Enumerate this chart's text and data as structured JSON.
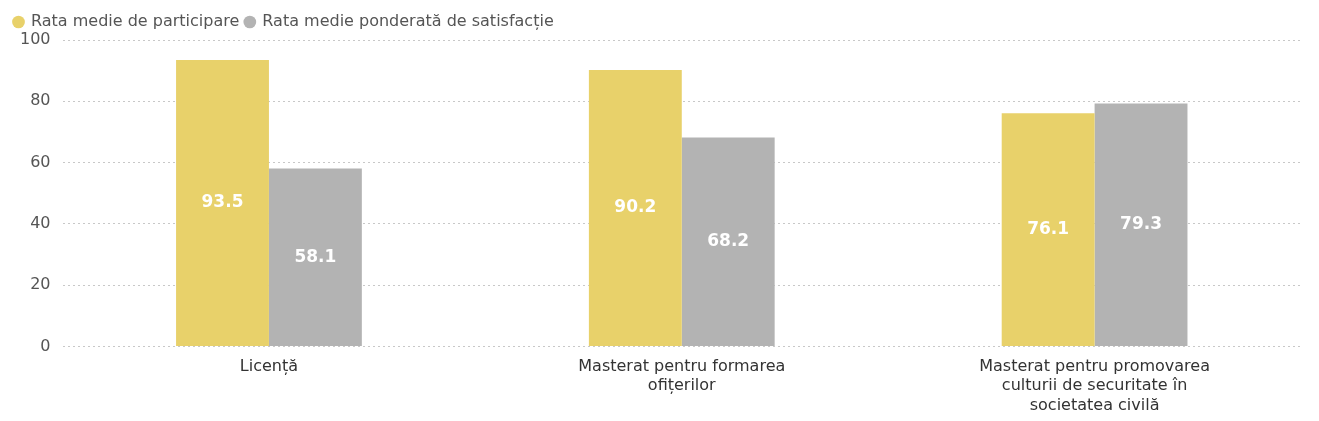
{
  "chart_data": {
    "type": "bar",
    "categories": [
      "Licență",
      "Masterat pentru formarea ofițerilor",
      "Masterat pentru promovarea culturii de securitate în societatea civilă"
    ],
    "series": [
      {
        "name": "Rata medie de participare",
        "color": "#e8d16a",
        "values": [
          93.5,
          90.2,
          76.1
        ]
      },
      {
        "name": "Rata medie ponderată de satisfacție",
        "color": "#b3b3b3",
        "values": [
          58.1,
          68.2,
          79.3
        ]
      }
    ],
    "ylim": [
      0,
      100
    ],
    "yticks": [
      0,
      20,
      40,
      60,
      80,
      100
    ],
    "grid": "y",
    "legend": "top left",
    "data_labels": true
  }
}
